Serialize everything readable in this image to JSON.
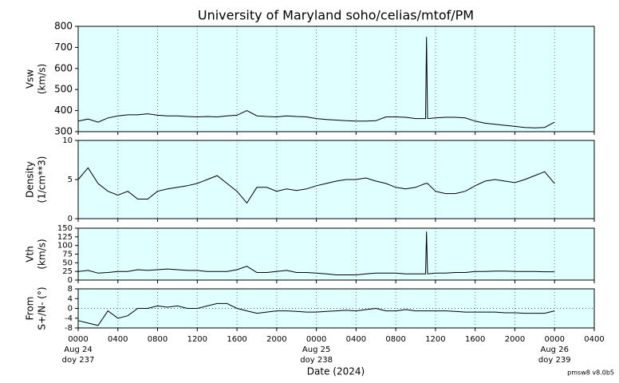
{
  "title": "University of Maryland  soho/celias/mtof/PM",
  "xlabel": "Date (2024)",
  "footer": "pmsw8 v8.0b5",
  "xlim": [
    0,
    52
  ],
  "xticks": [
    {
      "value": 0,
      "label": "0000"
    },
    {
      "value": 4,
      "label": "0400"
    },
    {
      "value": 8,
      "label": "0800"
    },
    {
      "value": 12,
      "label": "1200"
    },
    {
      "value": 16,
      "label": "1600"
    },
    {
      "value": 20,
      "label": "2000"
    },
    {
      "value": 24,
      "label": "0000"
    },
    {
      "value": 28,
      "label": "0400"
    },
    {
      "value": 32,
      "label": "0800"
    },
    {
      "value": 36,
      "label": "1200"
    },
    {
      "value": 40,
      "label": "1600"
    },
    {
      "value": 44,
      "label": "2000"
    },
    {
      "value": 48,
      "label": "0000"
    },
    {
      "value": 52,
      "label": "0400"
    }
  ],
  "date_labels": [
    {
      "x": 0,
      "lines": [
        "Aug 24",
        "doy 237"
      ]
    },
    {
      "x": 24,
      "lines": [
        "Aug 25",
        "doy 238"
      ]
    },
    {
      "x": 48,
      "lines": [
        "Aug 26",
        "doy 239"
      ]
    }
  ],
  "chart_data": [
    {
      "type": "line",
      "ylabel": [
        "Vsw",
        "(km/s)"
      ],
      "ylim": [
        300,
        800
      ],
      "yticks": [
        300,
        400,
        500,
        600,
        700,
        800
      ],
      "grid": true,
      "background": "#e0ffff",
      "x": [
        0,
        1,
        2,
        3,
        4,
        5,
        6,
        7,
        8,
        9,
        10,
        11,
        12,
        13,
        14,
        15,
        16,
        17,
        18,
        19,
        20,
        21,
        22,
        23,
        24,
        25,
        26,
        27,
        28,
        29,
        30,
        31,
        32,
        33,
        34,
        35,
        35.1,
        35.2,
        36,
        37,
        38,
        39,
        40,
        41,
        42,
        43,
        44,
        45,
        46,
        47,
        48
      ],
      "series": [
        {
          "color": "#000000",
          "values": [
            350,
            360,
            345,
            365,
            375,
            380,
            380,
            385,
            378,
            375,
            375,
            372,
            370,
            372,
            370,
            375,
            378,
            400,
            375,
            372,
            370,
            375,
            372,
            370,
            362,
            358,
            355,
            352,
            350,
            350,
            352,
            370,
            370,
            368,
            362,
            362,
            750,
            362,
            365,
            368,
            368,
            365,
            350,
            340,
            335,
            330,
            325,
            320,
            318,
            320,
            345
          ]
        }
      ]
    },
    {
      "type": "line",
      "ylabel": [
        "Density",
        "(1/cm**3)"
      ],
      "ylim": [
        0,
        10
      ],
      "yticks": [
        0,
        5,
        10
      ],
      "grid": true,
      "background": "#e0ffff",
      "x": [
        0,
        1,
        2,
        3,
        4,
        5,
        6,
        7,
        8,
        9,
        10,
        11,
        12,
        13,
        14,
        15,
        16,
        17,
        18,
        19,
        20,
        21,
        22,
        23,
        24,
        25,
        26,
        27,
        28,
        29,
        30,
        31,
        32,
        33,
        34,
        35,
        35.1,
        35.2,
        36,
        37,
        38,
        39,
        40,
        41,
        42,
        43,
        44,
        45,
        46,
        47,
        48
      ],
      "series": [
        {
          "color": "#000000",
          "values": [
            5,
            6.5,
            4.5,
            3.5,
            3,
            3.5,
            2.5,
            2.5,
            3.5,
            3.8,
            4,
            4.2,
            4.5,
            5,
            5.5,
            4.5,
            3.5,
            2,
            4,
            4,
            3.5,
            3.8,
            3.6,
            3.8,
            4.2,
            4.5,
            4.8,
            5,
            5,
            5.2,
            4.8,
            4.5,
            4,
            3.8,
            4,
            4.5,
            4.5,
            4.5,
            3.5,
            3.2,
            3.2,
            3.5,
            4.2,
            4.8,
            5,
            4.8,
            4.6,
            5,
            5.5,
            6,
            4.5
          ]
        }
      ]
    },
    {
      "type": "line",
      "ylabel": [
        "Vth",
        "(km/s)"
      ],
      "ylim": [
        0,
        150
      ],
      "yticks": [
        0,
        25,
        50,
        75,
        100,
        125,
        150
      ],
      "grid": true,
      "background": "#e0ffff",
      "x": [
        0,
        1,
        2,
        3,
        4,
        5,
        6,
        7,
        8,
        9,
        10,
        11,
        12,
        13,
        14,
        15,
        16,
        17,
        18,
        19,
        20,
        21,
        22,
        23,
        24,
        25,
        26,
        27,
        28,
        29,
        30,
        31,
        32,
        33,
        34,
        35,
        35.1,
        35.2,
        36,
        37,
        38,
        39,
        40,
        41,
        42,
        43,
        44,
        45,
        46,
        47,
        48
      ],
      "series": [
        {
          "color": "#000000",
          "values": [
            25,
            28,
            20,
            22,
            25,
            25,
            30,
            28,
            30,
            32,
            30,
            28,
            28,
            25,
            25,
            25,
            30,
            40,
            22,
            22,
            25,
            28,
            22,
            22,
            20,
            18,
            15,
            15,
            15,
            18,
            20,
            20,
            20,
            18,
            18,
            18,
            140,
            18,
            20,
            20,
            22,
            22,
            25,
            25,
            26,
            26,
            25,
            25,
            25,
            24,
            24
          ]
        }
      ]
    },
    {
      "type": "line",
      "ylabel": [
        "From",
        "S+/N- (°)"
      ],
      "ylim": [
        -8,
        8
      ],
      "yticks": [
        -8,
        -4,
        0,
        4,
        8
      ],
      "grid": true,
      "zero_line": true,
      "background": "#e0ffff",
      "x": [
        0,
        1,
        2,
        3,
        4,
        5,
        6,
        7,
        8,
        9,
        10,
        11,
        12,
        13,
        14,
        15,
        16,
        17,
        18,
        19,
        20,
        21,
        22,
        23,
        24,
        25,
        26,
        27,
        28,
        29,
        30,
        31,
        32,
        33,
        34,
        35,
        35.1,
        35.2,
        36,
        37,
        38,
        39,
        40,
        41,
        42,
        43,
        44,
        45,
        46,
        47,
        48
      ],
      "series": [
        {
          "color": "#000000",
          "values": [
            -5,
            -6,
            -7,
            -1,
            -4,
            -3,
            0,
            0,
            1,
            0.5,
            1,
            0,
            0,
            1,
            2,
            2,
            0,
            -1,
            -2,
            -1.5,
            -1,
            -1,
            -1.2,
            -1.5,
            -1.5,
            -1.2,
            -1,
            -0.8,
            -1,
            -0.5,
            0,
            -1,
            -1,
            -0.5,
            -1,
            -1,
            -1,
            -1,
            -1,
            -1,
            -1.2,
            -1.5,
            -1.5,
            -1.5,
            -1.5,
            -1.8,
            -1.8,
            -2,
            -2,
            -2,
            -1
          ]
        }
      ]
    }
  ]
}
